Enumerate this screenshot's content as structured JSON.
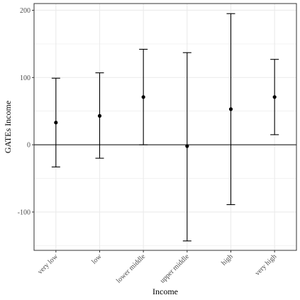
{
  "chart_data": {
    "type": "errorbar",
    "title": "",
    "xlabel": "Income",
    "ylabel": "GATEs Income",
    "categories": [
      "very low",
      "low",
      "lower middle",
      "upper middle",
      "high",
      "very high"
    ],
    "estimates": [
      33,
      43,
      71,
      -2,
      53,
      71
    ],
    "lower": [
      -33,
      -20,
      0,
      -143,
      -89,
      15
    ],
    "upper": [
      99,
      107,
      142,
      137,
      195,
      127
    ],
    "ylim": [
      -157,
      210
    ],
    "yticks": [
      -100,
      0,
      100,
      200
    ],
    "y_minor_ticks": [
      -150,
      -50,
      50,
      150
    ],
    "hline": 0,
    "grid": true,
    "legend": "none",
    "colors": {
      "background": "#ffffff",
      "grid": "#ebebeb",
      "border": "#333333",
      "marks": "#000000"
    }
  }
}
